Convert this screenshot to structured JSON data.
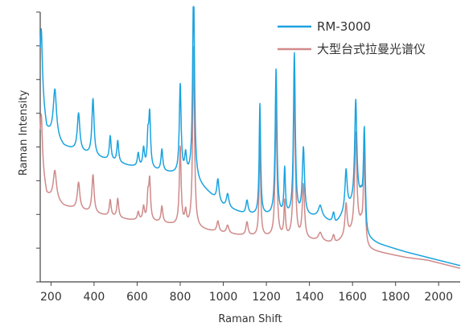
{
  "chart_data": {
    "type": "line",
    "xlabel": "Raman Shift",
    "ylabel": "Raman Intensity",
    "xlim": [
      150,
      2100
    ],
    "ylim": [
      0,
      100
    ],
    "x_ticks": [
      200,
      400,
      600,
      800,
      1000,
      1200,
      1400,
      1600,
      1800,
      2000
    ],
    "y_tick_count": 8,
    "y_tick_labels_shown": false,
    "grid": false,
    "legend_position": "top-right",
    "series": [
      {
        "name": "RM-3000",
        "color": "#1aa3e0",
        "baseline": [
          [
            150,
            72
          ],
          [
            180,
            56
          ],
          [
            260,
            50
          ],
          [
            420,
            46
          ],
          [
            560,
            43
          ],
          [
            700,
            41
          ],
          [
            850,
            39
          ],
          [
            1000,
            28
          ],
          [
            1100,
            25
          ],
          [
            1300,
            24
          ],
          [
            1450,
            24
          ],
          [
            1520,
            21
          ],
          [
            1580,
            27
          ],
          [
            1640,
            30
          ],
          [
            1665,
            16
          ],
          [
            1720,
            14
          ],
          [
            1850,
            11
          ],
          [
            1950,
            9
          ],
          [
            2050,
            7
          ],
          [
            2100,
            6
          ]
        ],
        "peaks": [
          [
            155,
            24,
            6
          ],
          [
            218,
            18,
            9
          ],
          [
            328,
            14,
            7
          ],
          [
            395,
            21,
            6
          ],
          [
            475,
            9,
            5
          ],
          [
            510,
            8,
            5
          ],
          [
            605,
            5,
            5
          ],
          [
            630,
            7,
            5
          ],
          [
            650,
            10,
            4
          ],
          [
            658,
            20,
            5
          ],
          [
            715,
            8,
            5
          ],
          [
            800,
            33,
            5
          ],
          [
            825,
            7,
            5
          ],
          [
            862,
            73,
            5
          ],
          [
            975,
            8,
            6
          ],
          [
            1020,
            5,
            7
          ],
          [
            1110,
            5,
            6
          ],
          [
            1170,
            41,
            4
          ],
          [
            1245,
            54,
            5
          ],
          [
            1285,
            17,
            4
          ],
          [
            1330,
            60,
            5
          ],
          [
            1372,
            25,
            6
          ],
          [
            1450,
            4,
            10
          ],
          [
            1512,
            4,
            6
          ],
          [
            1570,
            15,
            6
          ],
          [
            1615,
            38,
            6
          ],
          [
            1655,
            35,
            5
          ]
        ]
      },
      {
        "name": "大型台式拉曼光谱仪",
        "color": "#d08a8a",
        "baseline": [
          [
            150,
            45
          ],
          [
            180,
            32
          ],
          [
            260,
            28
          ],
          [
            420,
            25
          ],
          [
            560,
            23
          ],
          [
            700,
            22
          ],
          [
            850,
            20
          ],
          [
            1000,
            18
          ],
          [
            1100,
            17
          ],
          [
            1300,
            16
          ],
          [
            1450,
            15
          ],
          [
            1520,
            14
          ],
          [
            1580,
            17
          ],
          [
            1640,
            20
          ],
          [
            1665,
            12
          ],
          [
            1720,
            11
          ],
          [
            1850,
            9
          ],
          [
            1950,
            8
          ],
          [
            2050,
            6
          ],
          [
            2100,
            5
          ]
        ],
        "peaks": [
          [
            155,
            19,
            6
          ],
          [
            218,
            11,
            9
          ],
          [
            328,
            10,
            7
          ],
          [
            395,
            14,
            6
          ],
          [
            475,
            6,
            5
          ],
          [
            510,
            7,
            5
          ],
          [
            605,
            3,
            5
          ],
          [
            630,
            5,
            5
          ],
          [
            650,
            8,
            4
          ],
          [
            658,
            15,
            5
          ],
          [
            715,
            6,
            5
          ],
          [
            800,
            29,
            5
          ],
          [
            825,
            5,
            5
          ],
          [
            862,
            67,
            5
          ],
          [
            975,
            4,
            6
          ],
          [
            1020,
            3,
            7
          ],
          [
            1110,
            5,
            6
          ],
          [
            1170,
            37,
            4
          ],
          [
            1245,
            48,
            5
          ],
          [
            1285,
            13,
            4
          ],
          [
            1330,
            57,
            5
          ],
          [
            1372,
            20,
            6
          ],
          [
            1450,
            3,
            10
          ],
          [
            1512,
            3,
            6
          ],
          [
            1570,
            12,
            6
          ],
          [
            1615,
            36,
            6
          ],
          [
            1655,
            32,
            5
          ]
        ]
      }
    ]
  }
}
